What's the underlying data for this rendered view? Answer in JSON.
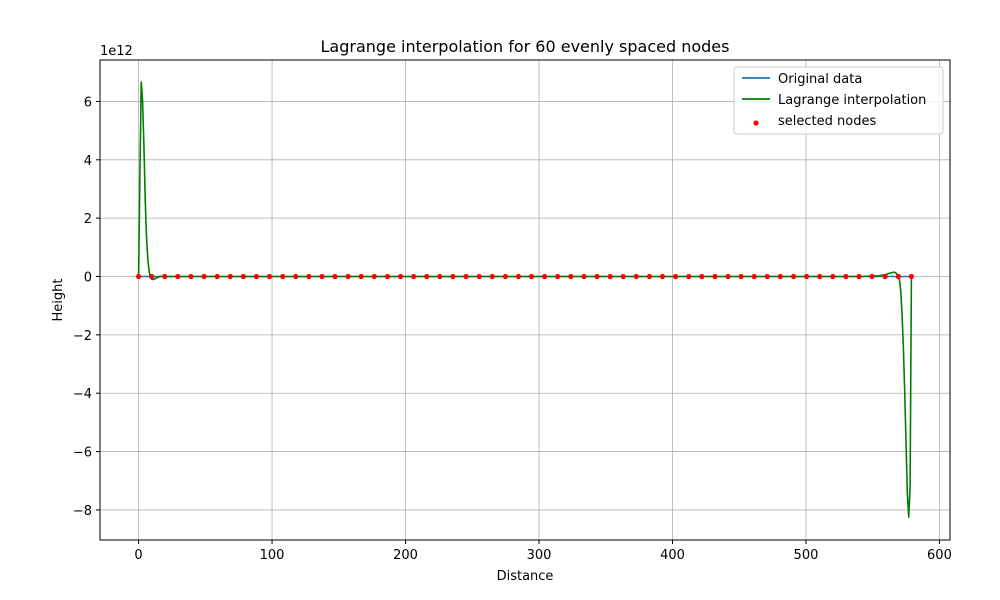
{
  "chart_data": {
    "type": "line",
    "title": "Lagrange interpolation for 60 evenly spaced nodes",
    "xlabel": "Distance",
    "ylabel": "Height",
    "y_offset_label": "1e12",
    "y_scale": 1000000000000.0,
    "xlim": [
      -28.9,
      607.9
    ],
    "ylim": [
      -9030000000000.0,
      7420000000000.0
    ],
    "x_ticks": [
      0,
      100,
      200,
      300,
      400,
      500,
      600
    ],
    "x_tick_labels": [
      "0",
      "100",
      "200",
      "300",
      "400",
      "500",
      "600"
    ],
    "y_ticks": [
      6000000000000.0,
      4000000000000.0,
      2000000000000.0,
      0,
      -2000000000000.0,
      -4000000000000.0,
      -6000000000000.0,
      -8000000000000.0
    ],
    "y_tick_labels": [
      "6",
      "4",
      "2",
      "0",
      "−2",
      "−4",
      "−6",
      "−8"
    ],
    "grid": true,
    "legend_position": "top-right",
    "series": [
      {
        "name": "Original data",
        "kind": "line",
        "color": "#1f77b4",
        "x": [
          0,
          579
        ],
        "y": [
          0,
          0
        ]
      },
      {
        "name": "Lagrange interpolation",
        "kind": "line",
        "color": "#008000",
        "x": [
          0,
          1,
          2,
          3,
          4,
          5,
          6,
          7,
          8,
          9,
          10,
          11,
          12,
          14,
          16,
          18,
          20,
          25,
          40,
          100,
          200,
          300,
          400,
          500,
          540,
          555,
          560,
          563,
          566,
          568,
          570,
          571,
          572,
          573,
          574,
          575,
          576,
          577,
          578,
          579
        ],
        "y": [
          0,
          3500000000000.0,
          6670000000000.0,
          6000000000000.0,
          4500000000000.0,
          2600000000000.0,
          1300000000000.0,
          550000000000.0,
          150000000000.0,
          -50000000000.0,
          -100000000000.0,
          -100000000000.0,
          -80000000000.0,
          -40000000000.0,
          0,
          10000000000.0,
          0,
          0,
          0,
          0,
          0,
          0,
          0,
          0,
          0,
          30000000000.0,
          70000000000.0,
          120000000000.0,
          150000000000.0,
          100000000000.0,
          -100000000000.0,
          -500000000000.0,
          -1300000000000.0,
          -2500000000000.0,
          -4000000000000.0,
          -5800000000000.0,
          -7500000000000.0,
          -8250000000000.0,
          -7200000000000.0,
          0
        ]
      },
      {
        "name": "selected nodes",
        "kind": "scatter",
        "color": "#ff0000",
        "x": [
          0,
          9.8,
          19.6,
          29.4,
          39.3,
          49.1,
          58.9,
          68.7,
          78.5,
          88.3,
          98.1,
          108,
          117.8,
          127.6,
          137.4,
          147.2,
          157,
          166.8,
          176.6,
          186.5,
          196.3,
          206.1,
          215.9,
          225.7,
          235.5,
          245.3,
          255.2,
          265,
          274.8,
          284.6,
          294.4,
          304.2,
          314,
          323.8,
          333.7,
          343.5,
          353.3,
          363.1,
          372.9,
          382.7,
          392.5,
          402.3,
          412.2,
          422,
          431.8,
          441.6,
          451.4,
          461.2,
          471,
          480.8,
          490.7,
          500.5,
          510.3,
          520.1,
          529.9,
          539.7,
          549.5,
          559.3,
          569.2,
          579
        ],
        "y": [
          0,
          0,
          0,
          0,
          0,
          0,
          0,
          0,
          0,
          0,
          0,
          0,
          0,
          0,
          0,
          0,
          0,
          0,
          0,
          0,
          0,
          0,
          0,
          0,
          0,
          0,
          0,
          0,
          0,
          0,
          0,
          0,
          0,
          0,
          0,
          0,
          0,
          0,
          0,
          0,
          0,
          0,
          0,
          0,
          0,
          0,
          0,
          0,
          0,
          0,
          0,
          0,
          0,
          0,
          0,
          0,
          0,
          0,
          0,
          0
        ]
      }
    ]
  }
}
